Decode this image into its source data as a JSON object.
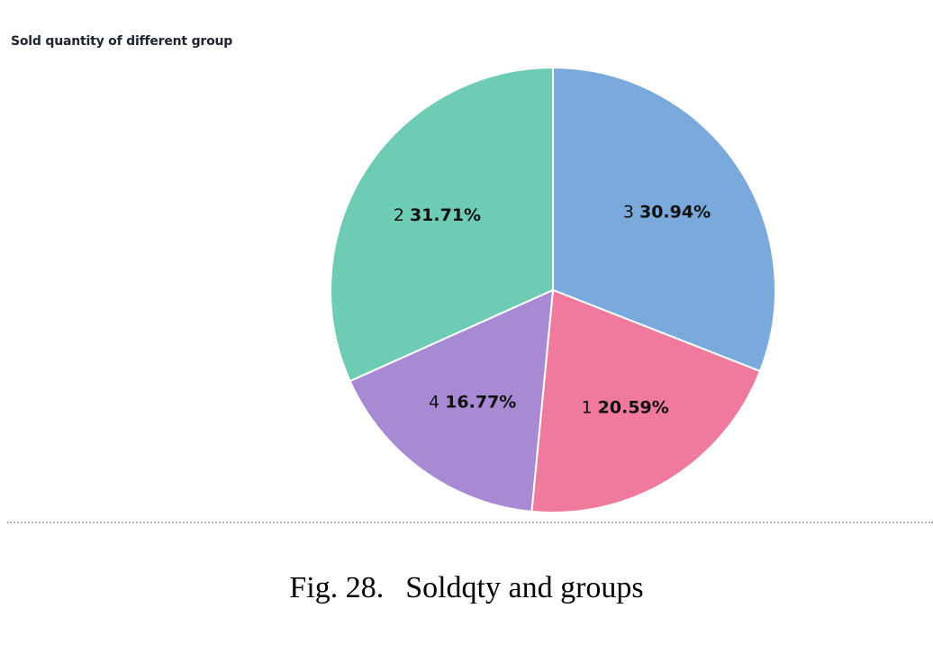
{
  "chart_data": {
    "type": "pie",
    "title": "Sold quantity of different group",
    "slices": [
      {
        "label": "3",
        "percent_label": "30.94%",
        "value": 30.94,
        "color": "#7aa9db"
      },
      {
        "label": "1",
        "percent_label": "20.59%",
        "value": 20.59,
        "color": "#ef7a9d"
      },
      {
        "label": "4",
        "percent_label": "16.77%",
        "value": 16.77,
        "color": "#a889d4"
      },
      {
        "label": "2",
        "percent_label": "31.71%",
        "value": 31.71,
        "color": "#6fccb4"
      }
    ],
    "start_angle_deg": 0,
    "direction": "clockwise",
    "slice_border_color": "#ffffff"
  },
  "caption": {
    "number": "Fig. 28.",
    "text": "Soldqty and groups"
  }
}
